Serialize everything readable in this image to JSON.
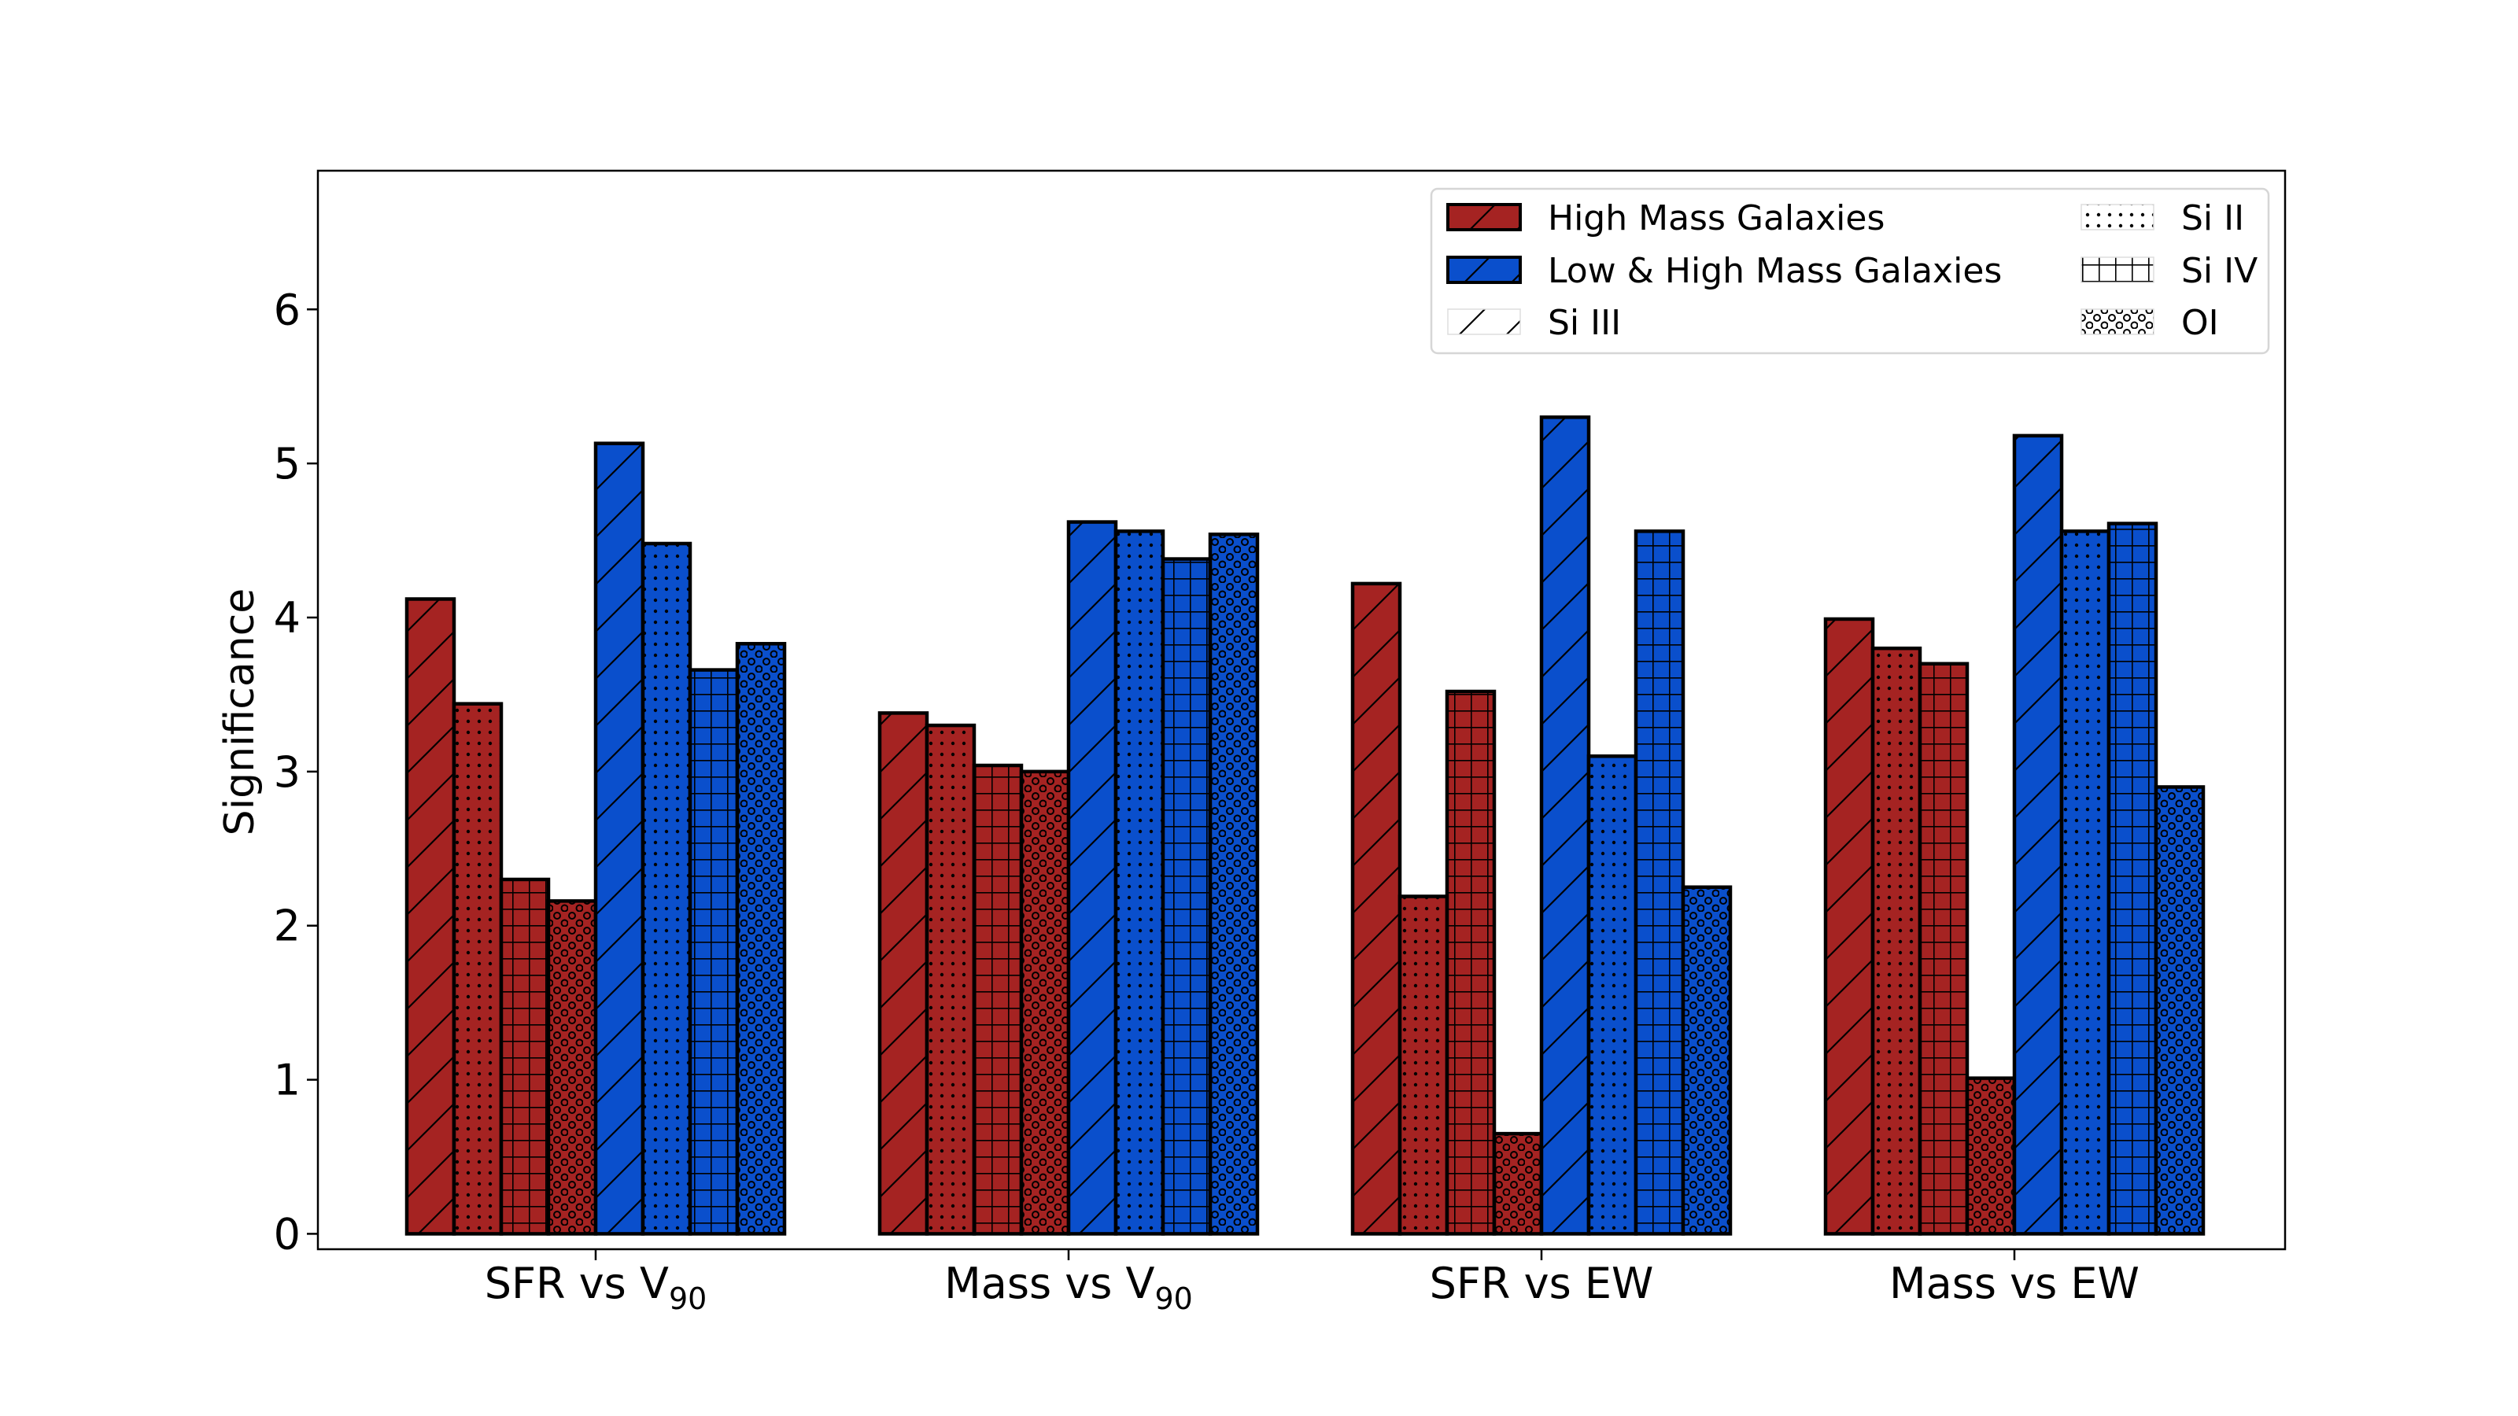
{
  "chart_data": {
    "type": "bar",
    "ylabel": "Significance",
    "xlabel": "",
    "ylim": [
      -0.1,
      6.9
    ],
    "yticks": [
      0,
      1,
      2,
      3,
      4,
      5,
      6
    ],
    "grid": false,
    "legend_position": "top-right",
    "categories": [
      {
        "label": "SFR vs V",
        "sub": "90"
      },
      {
        "label": "Mass vs  V",
        "sub": "90"
      },
      {
        "label": "SFR vs EW",
        "sub": ""
      },
      {
        "label": "Mass vs EW",
        "sub": ""
      }
    ],
    "groups": [
      {
        "name": "High Mass Galaxies",
        "color": "#a52322"
      },
      {
        "name": "Low & High Mass Galaxies",
        "color": "#0a4fcc"
      }
    ],
    "ions": [
      {
        "name": "Si III",
        "hatch": "diagonal"
      },
      {
        "name": "Si II",
        "hatch": "dots"
      },
      {
        "name": "Si IV",
        "hatch": "grid"
      },
      {
        "name": "OI",
        "hatch": "circles"
      }
    ],
    "series": [
      {
        "group": "High Mass Galaxies",
        "ion": "Si III",
        "values": [
          4.12,
          3.38,
          4.22,
          3.99
        ]
      },
      {
        "group": "High Mass Galaxies",
        "ion": "Si II",
        "values": [
          3.44,
          3.3,
          2.19,
          3.8
        ]
      },
      {
        "group": "High Mass Galaxies",
        "ion": "Si IV",
        "values": [
          2.3,
          3.04,
          3.52,
          3.7
        ]
      },
      {
        "group": "High Mass Galaxies",
        "ion": "OI",
        "values": [
          2.16,
          3.0,
          0.65,
          1.01
        ]
      },
      {
        "group": "Low & High Mass Galaxies",
        "ion": "Si III",
        "values": [
          5.13,
          4.62,
          5.3,
          5.18
        ]
      },
      {
        "group": "Low & High Mass Galaxies",
        "ion": "Si II",
        "values": [
          4.48,
          4.56,
          3.1,
          4.56
        ]
      },
      {
        "group": "Low & High Mass Galaxies",
        "ion": "Si IV",
        "values": [
          3.66,
          4.38,
          4.56,
          4.61
        ]
      },
      {
        "group": "Low & High Mass Galaxies",
        "ion": "OI",
        "values": [
          3.83,
          4.54,
          2.25,
          2.9
        ]
      }
    ]
  }
}
